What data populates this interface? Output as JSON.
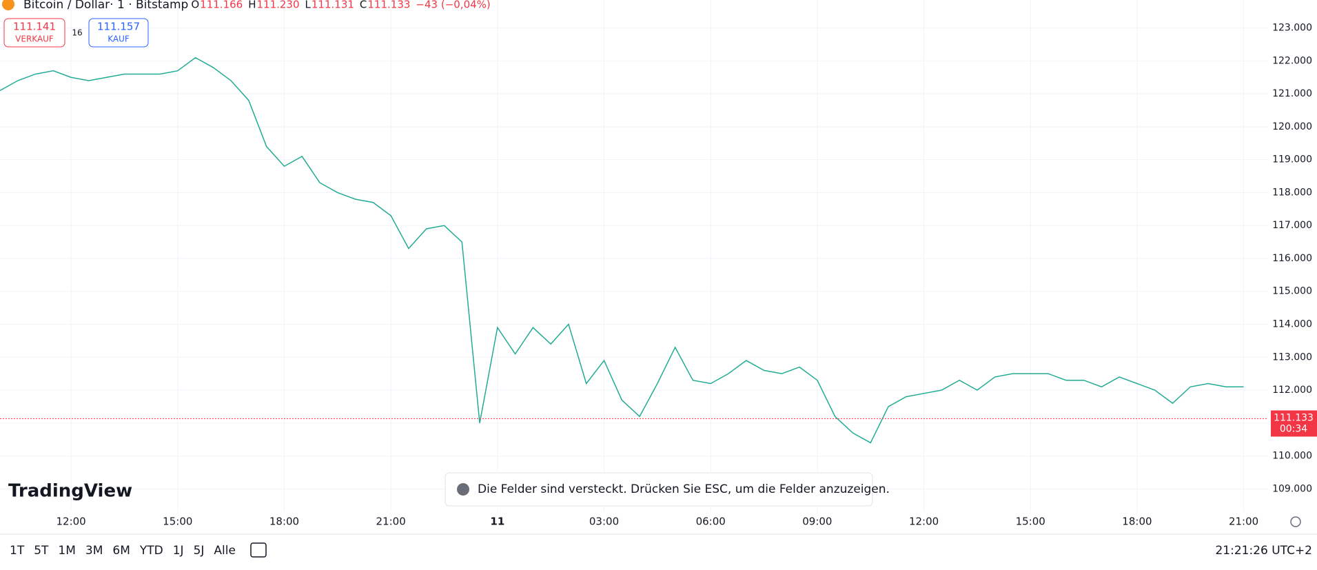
{
  "header": {
    "symbol": "Bitcoin / Dollar· 1 · Bitstamp",
    "ohlc": [
      {
        "key": "O",
        "value": "111.166"
      },
      {
        "key": "H",
        "value": "111.230"
      },
      {
        "key": "L",
        "value": "111.131"
      },
      {
        "key": "C",
        "value": "111.133"
      }
    ],
    "change": "−43 (−0,04%)"
  },
  "trade": {
    "sell": {
      "price": "111.141",
      "label": "VERKAUF"
    },
    "spread": "16",
    "buy": {
      "price": "111.157",
      "label": "KAUF"
    }
  },
  "logo": "TradingView",
  "toast": "Die Felder sind versteckt. Drücken Sie ESC, um die Felder anzuzeigen.",
  "ranges": [
    "1T",
    "5T",
    "1M",
    "3M",
    "6M",
    "YTD",
    "1J",
    "5J",
    "Alle"
  ],
  "clock": "21:21:26 UTC+2",
  "chart_data": {
    "type": "line",
    "categories": [
      null,
      null,
      null,
      null,
      "12:00",
      null,
      null,
      null,
      null,
      null,
      "15:00",
      null,
      null,
      null,
      null,
      null,
      "18:00",
      null,
      null,
      null,
      null,
      null,
      "21:00",
      null,
      null,
      null,
      null,
      null,
      "11",
      null,
      null,
      null,
      null,
      null,
      "03:00",
      null,
      null,
      null,
      null,
      null,
      "06:00",
      null,
      null,
      null,
      null,
      null,
      "09:00",
      null,
      null,
      null,
      null,
      null,
      "12:00",
      null,
      null,
      null,
      null,
      null,
      "15:00",
      null,
      null,
      null,
      null,
      null,
      "18:00",
      null,
      null,
      null,
      null,
      null,
      "21:00"
    ],
    "series": [
      {
        "name": "BTCUSD",
        "color": "#22ab94",
        "values": [
          121100,
          121400,
          121600,
          121700,
          121500,
          121400,
          121500,
          121600,
          121600,
          121600,
          121700,
          122100,
          121800,
          121400,
          120800,
          119400,
          118800,
          119100,
          118300,
          118000,
          117800,
          117700,
          117300,
          116300,
          116900,
          117000,
          116500,
          111000,
          113900,
          113100,
          113900,
          113400,
          114000,
          112200,
          112900,
          111700,
          111200,
          112200,
          113300,
          112300,
          112200,
          112500,
          112900,
          112600,
          112500,
          112700,
          112300,
          111200,
          110700,
          110400,
          111500,
          111800,
          111900,
          112000,
          112300,
          112000,
          112400,
          112500,
          112500,
          112500,
          112300,
          112300,
          112100,
          112400,
          112200,
          112000,
          111600,
          112100,
          112200,
          112100,
          112100
        ]
      }
    ],
    "ylim": [
      108400,
      123850
    ],
    "yticks": [
      {
        "value": 109000,
        "label": "109.000"
      },
      {
        "value": 110000,
        "label": "110.000"
      },
      {
        "value": 111000,
        "label": "111.000"
      },
      {
        "value": 112000,
        "label": "112.000"
      },
      {
        "value": 113000,
        "label": "113.000"
      },
      {
        "value": 114000,
        "label": "114.000"
      },
      {
        "value": 115000,
        "label": "115.000"
      },
      {
        "value": 116000,
        "label": "116.000"
      },
      {
        "value": 117000,
        "label": "117.000"
      },
      {
        "value": 118000,
        "label": "118.000"
      },
      {
        "value": 119000,
        "label": "119.000"
      },
      {
        "value": 120000,
        "label": "120.000"
      },
      {
        "value": 121000,
        "label": "121.000"
      },
      {
        "value": 122000,
        "label": "122.000"
      },
      {
        "value": 123000,
        "label": "123.000"
      }
    ],
    "grid": true,
    "price_line": {
      "value": 111133,
      "label": "111.133",
      "countdown": "00:34",
      "color": "#f23645"
    }
  }
}
